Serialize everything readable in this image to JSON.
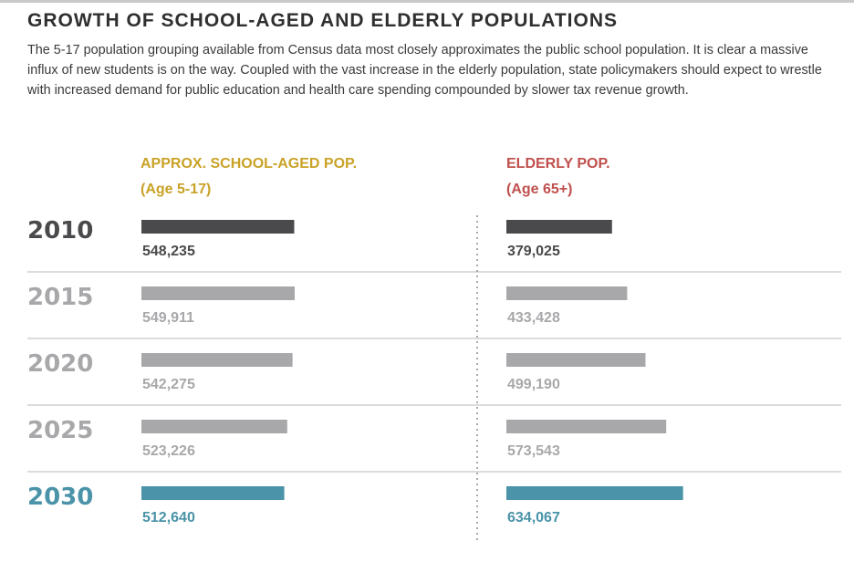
{
  "title": "GROWTH OF SCHOOL-AGED AND ELDERLY POPULATIONS",
  "intro": "The 5-17 population grouping available from Census data most closely approximates the public school population. It is clear a massive influx of new students is on the way. Coupled with the vast increase in the elderly population, state policymakers should expect to wrestle with increased demand for public education and health care spending compounded by slower tax revenue growth.",
  "columns": {
    "school": {
      "label": "APPROX. SCHOOL-AGED POP.",
      "sublabel": "(Age 5-17)"
    },
    "elderly": {
      "label": "ELDERLY POP.",
      "sublabel": "(Age 65+)"
    }
  },
  "colors": {
    "school_header": "#c9a227",
    "elderly_header": "#c0504d",
    "year_2010": "#4a4a4d",
    "middle_years": "#a8a8ab",
    "year_2030": "#4a93a8",
    "divider": "#cfcfcf"
  },
  "chart_data": {
    "type": "bar",
    "categories": [
      "2010",
      "2015",
      "2020",
      "2025",
      "2030"
    ],
    "series": [
      {
        "name": "APPROX. SCHOOL-AGED POP. (Age 5-17)",
        "values": [
          548235,
          549911,
          542275,
          523226,
          512640
        ],
        "labels": [
          "548,235",
          "549,911",
          "542,275",
          "523,226",
          "512,640"
        ]
      },
      {
        "name": "ELDERLY POP. (Age 65+)",
        "values": [
          379025,
          433428,
          499190,
          573543,
          634067
        ],
        "labels": [
          "379,025",
          "433,428",
          "499,190",
          "573,543",
          "634,067"
        ]
      }
    ]
  }
}
